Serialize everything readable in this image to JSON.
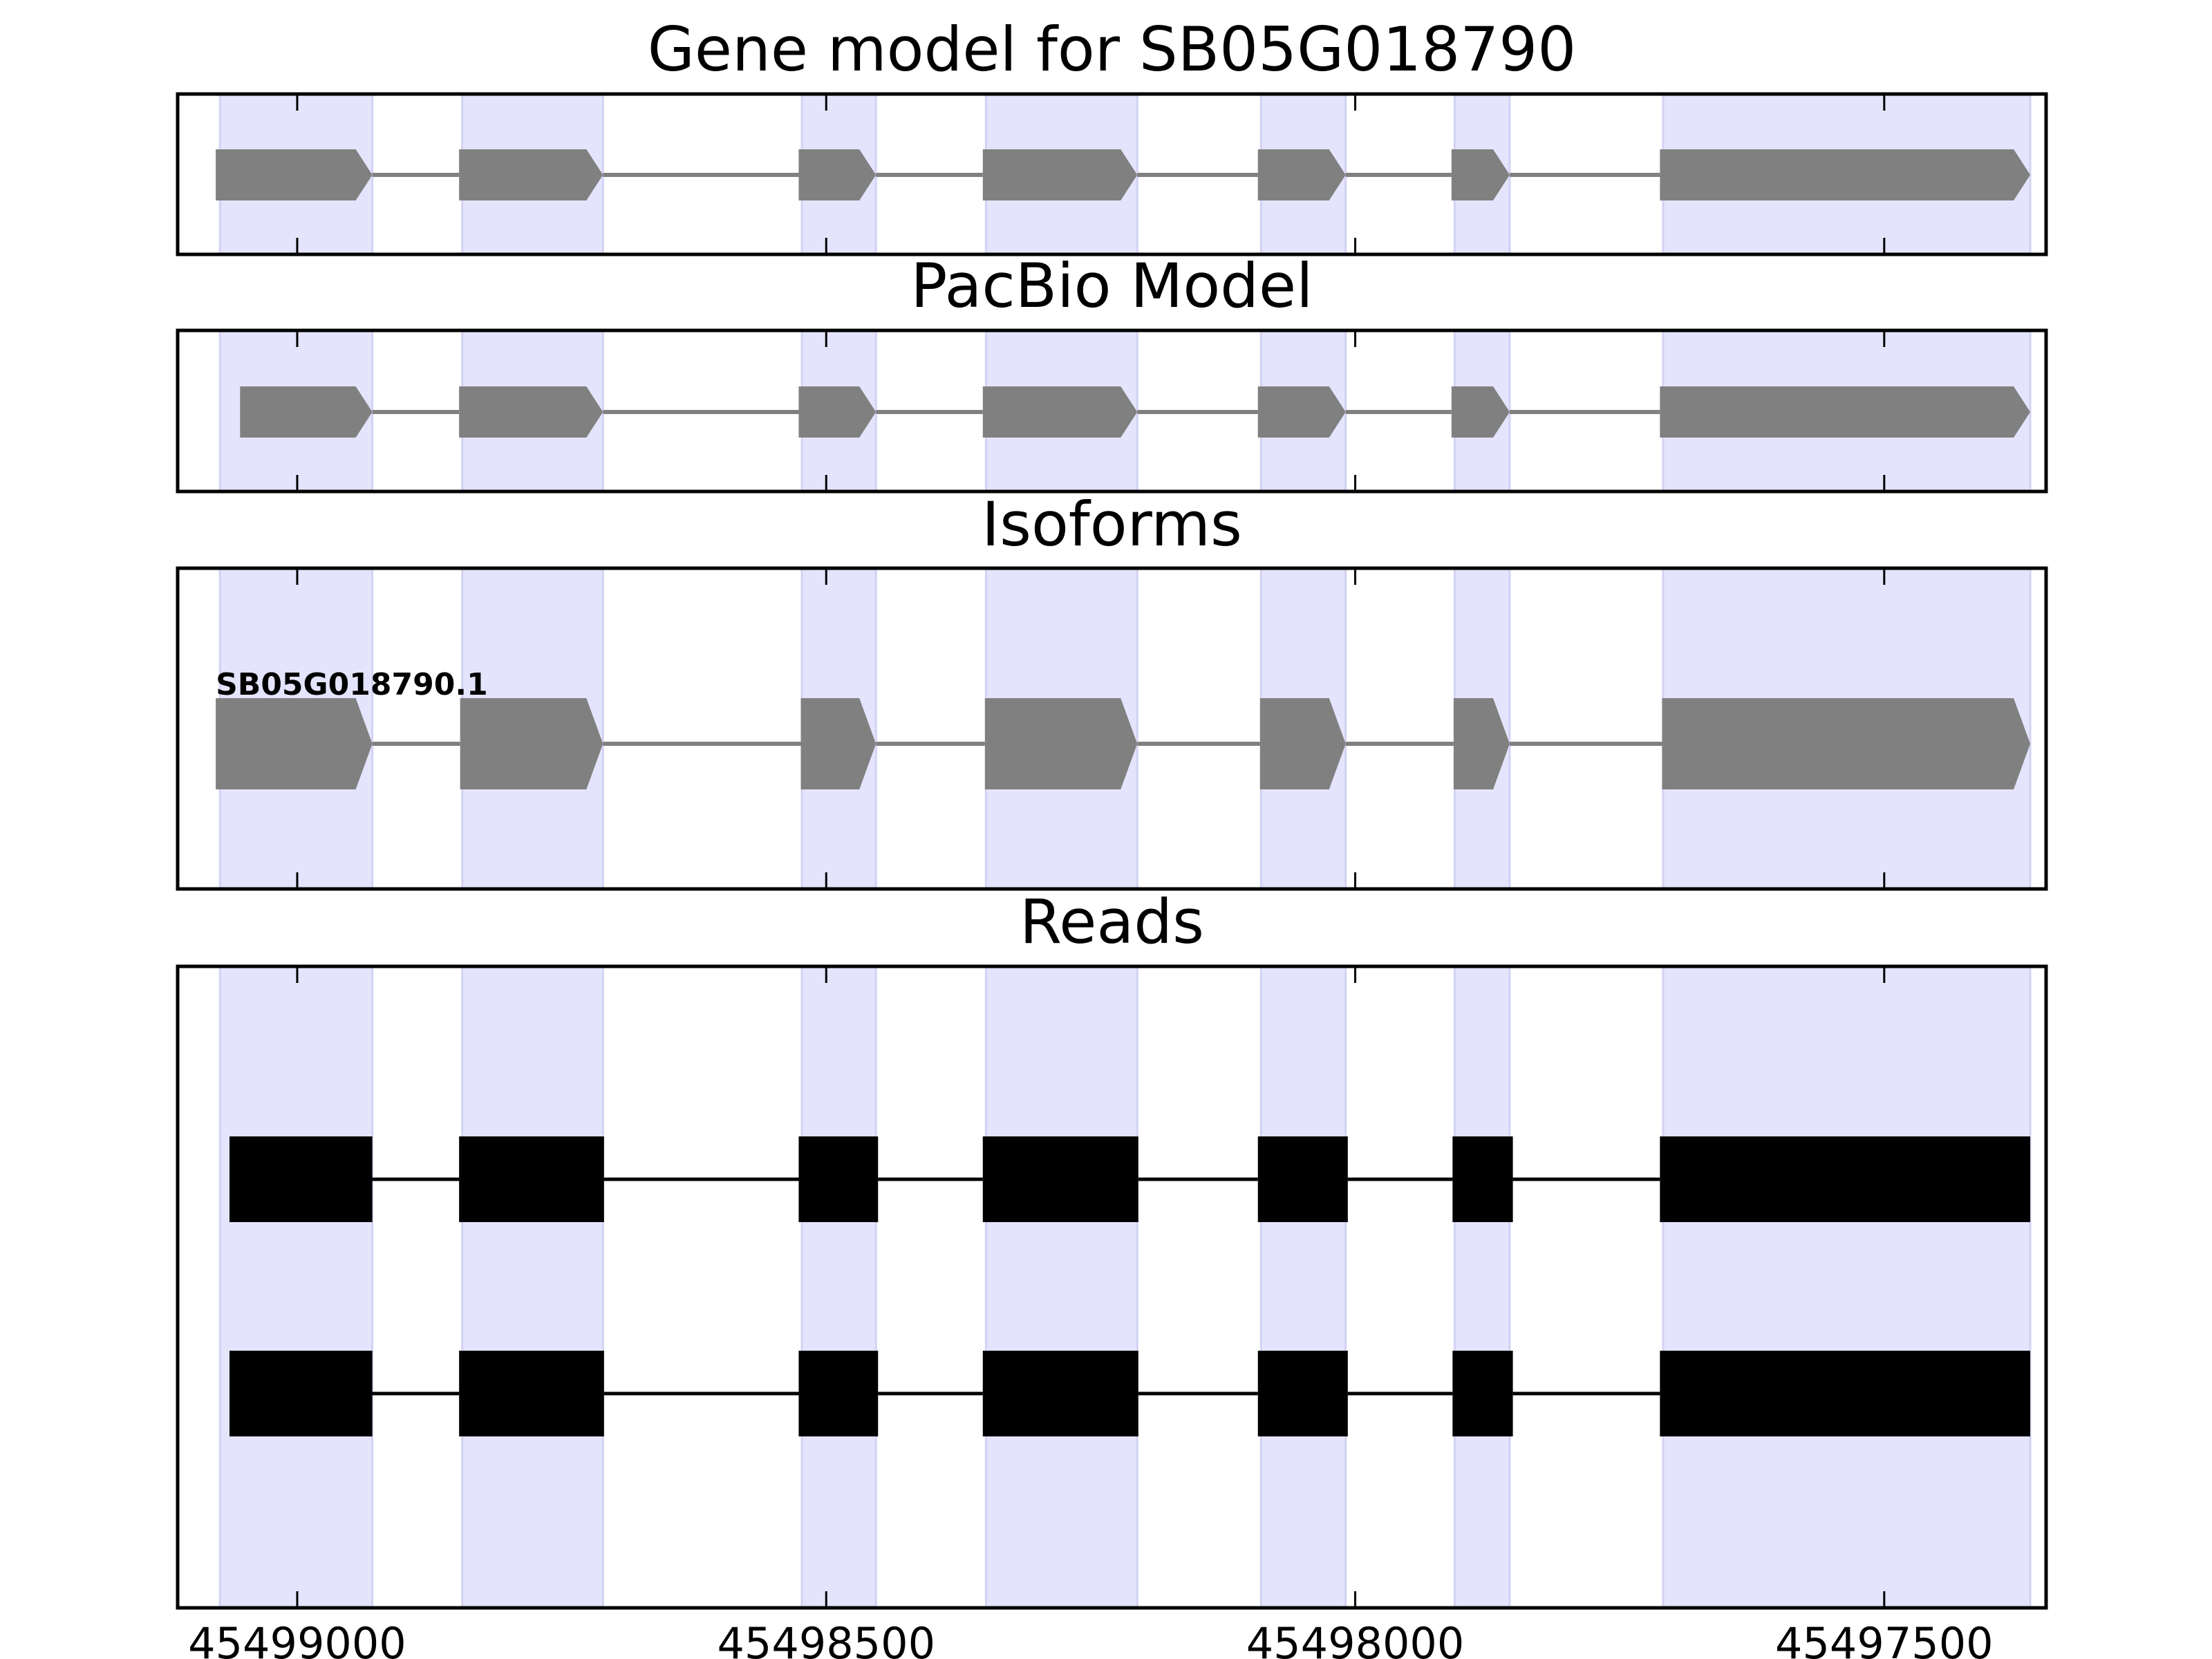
{
  "chart_data": {
    "type": "gene-model-tracks",
    "x_direction": "descending",
    "xlim": [
      45499113,
      45497347
    ],
    "grid": false,
    "x_ticks": [
      {
        "value": 45499000,
        "label": "45499000"
      },
      {
        "value": 45498500,
        "label": "45498500"
      },
      {
        "value": 45498000,
        "label": "45498000"
      },
      {
        "value": 45497500,
        "label": "45497500"
      }
    ],
    "shaded_exons": [
      [
        45499073,
        45498929
      ],
      [
        45498844,
        45498711
      ],
      [
        45498523,
        45498453
      ],
      [
        45498349,
        45498206
      ],
      [
        45498089,
        45498009
      ],
      [
        45497906,
        45497854
      ],
      [
        45497709,
        45497362
      ]
    ],
    "panels": [
      {
        "title": "Gene model for SB05G018790",
        "style": "arrow",
        "color": "#808080",
        "features": [
          {
            "label": "",
            "exons": [
              [
                45499077,
                45498929
              ],
              [
                45498847,
                45498711
              ],
              [
                45498526,
                45498453
              ],
              [
                45498352,
                45498206
              ],
              [
                45498092,
                45498009
              ],
              [
                45497909,
                45497854
              ],
              [
                45497712,
                45497362
              ]
            ]
          }
        ]
      },
      {
        "title": "PacBio Model",
        "style": "arrow",
        "color": "#808080",
        "features": [
          {
            "label": "",
            "exons": [
              [
                45499054,
                45498929
              ],
              [
                45498847,
                45498711
              ],
              [
                45498526,
                45498453
              ],
              [
                45498352,
                45498206
              ],
              [
                45498092,
                45498009
              ],
              [
                45497909,
                45497854
              ],
              [
                45497712,
                45497362
              ]
            ]
          }
        ]
      },
      {
        "title": "Isoforms",
        "style": "arrow",
        "color": "#808080",
        "features": [
          {
            "label": "SB05G018790.1",
            "exons": [
              [
                45499077,
                45498929
              ],
              [
                45498846,
                45498711
              ],
              [
                45498524,
                45498453
              ],
              [
                45498350,
                45498206
              ],
              [
                45498090,
                45498009
              ],
              [
                45497907,
                45497854
              ],
              [
                45497710,
                45497362
              ]
            ]
          }
        ]
      },
      {
        "title": "Reads",
        "style": "block",
        "color": "#000000",
        "features": [
          {
            "label": "",
            "exons": [
              [
                45499064,
                45498929
              ],
              [
                45498847,
                45498710
              ],
              [
                45498526,
                45498451
              ],
              [
                45498352,
                45498205
              ],
              [
                45498092,
                45498007
              ],
              [
                45497908,
                45497851
              ],
              [
                45497712,
                45497362
              ]
            ]
          },
          {
            "label": "",
            "exons": [
              [
                45499064,
                45498929
              ],
              [
                45498847,
                45498710
              ],
              [
                45498526,
                45498451
              ],
              [
                45498352,
                45498205
              ],
              [
                45498092,
                45498007
              ],
              [
                45497908,
                45497851
              ],
              [
                45497712,
                45497362
              ]
            ]
          }
        ]
      }
    ]
  }
}
